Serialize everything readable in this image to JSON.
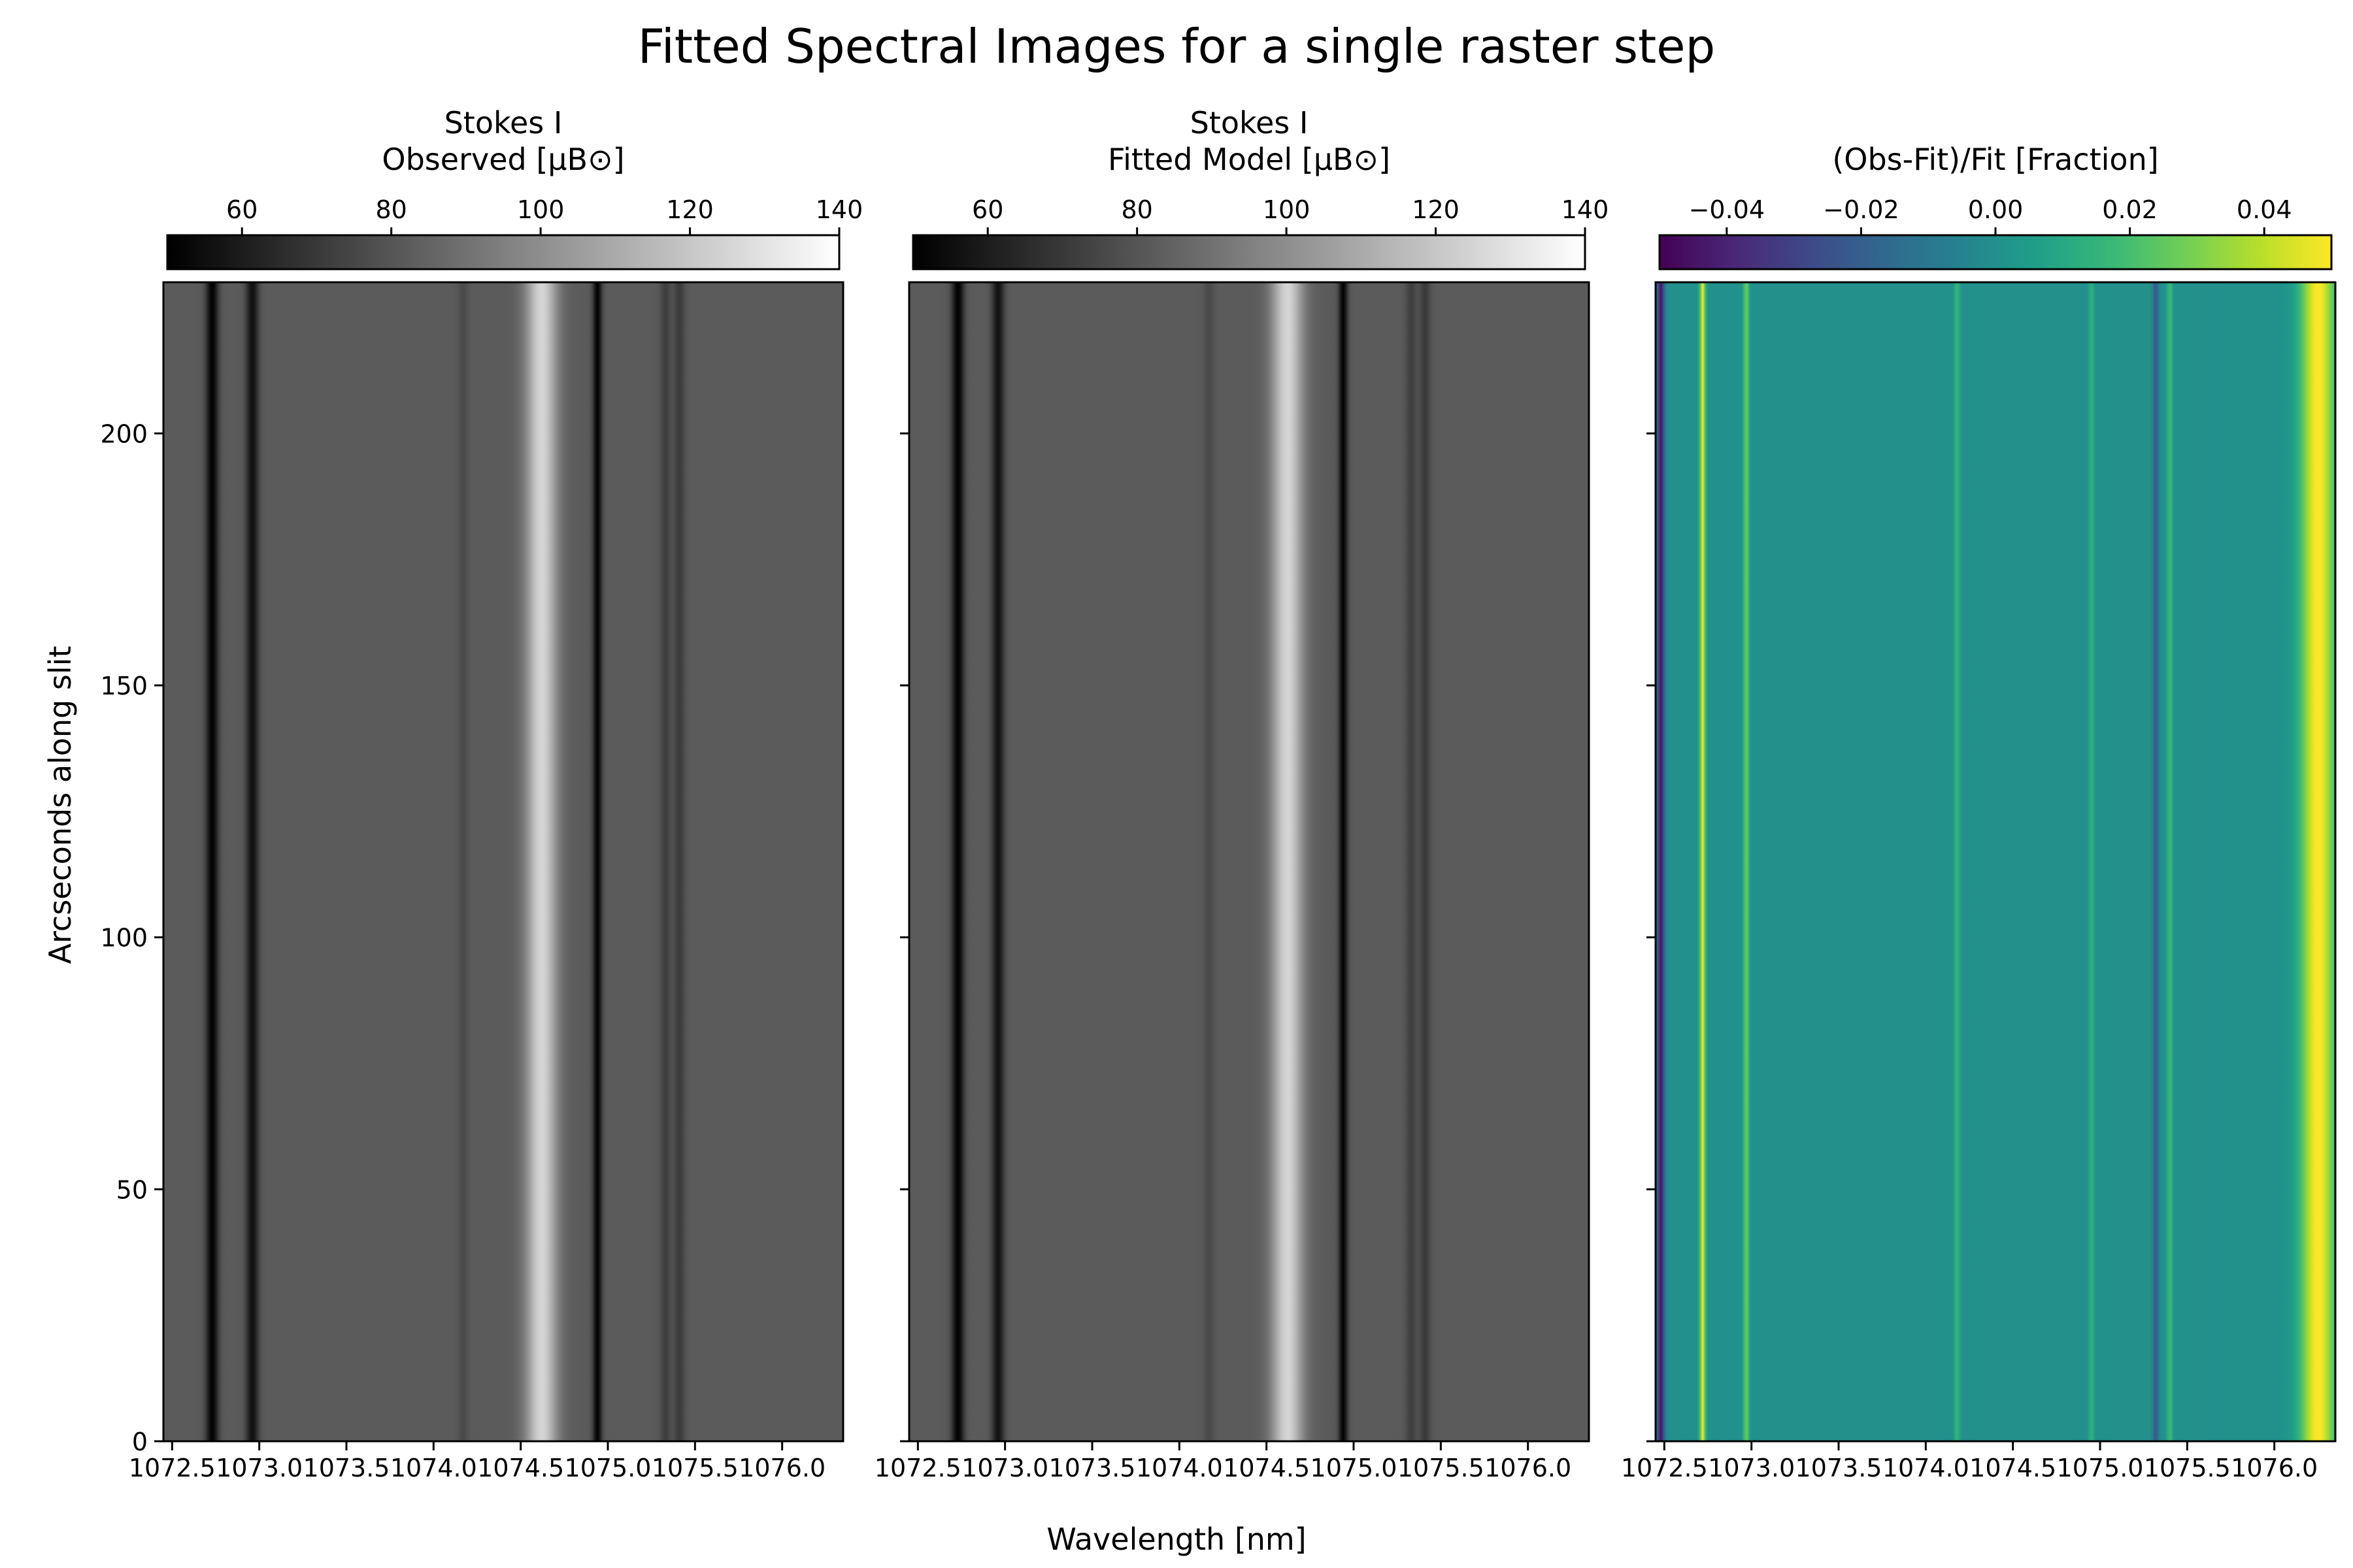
{
  "title": "Fitted Spectral Images for a single raster step",
  "xlabel": "Wavelength [nm]",
  "ylabel": "Arcseconds along slit",
  "colors": {
    "frame": "#000000",
    "viridis_low": "#440154",
    "viridis_mid": "#21918c",
    "viridis_high": "#fde725"
  },
  "chart_data": [
    {
      "type": "heatmap",
      "colorbar_label_lines": [
        "Stokes I",
        "Observed [μB⊙]"
      ],
      "colormap": "gray",
      "clim": [
        50,
        140
      ],
      "colorbar_ticks": [
        "60",
        "80",
        "100",
        "120",
        "140"
      ],
      "colorbar_tick_values": [
        60,
        80,
        100,
        120,
        140
      ],
      "xlim": [
        1072.45,
        1076.35
      ],
      "ylim": [
        0,
        230
      ],
      "xticks": [
        "1072.5",
        "1073.0",
        "1073.5",
        "1074.0",
        "1074.5",
        "1075.0",
        "1075.5",
        "1076.0"
      ],
      "xtick_values": [
        1072.5,
        1073.0,
        1073.5,
        1074.0,
        1074.5,
        1075.0,
        1075.5,
        1076.0
      ],
      "yticks": [
        "0",
        "50",
        "100",
        "150",
        "200"
      ],
      "ytick_values": [
        0,
        50,
        100,
        150,
        200
      ],
      "background_intensity": 82,
      "features": [
        {
          "wavelength": 1072.73,
          "intensity": 50,
          "width": 0.035
        },
        {
          "wavelength": 1072.96,
          "intensity": 55,
          "width": 0.035
        },
        {
          "wavelength": 1074.17,
          "intensity": 76,
          "width": 0.03
        },
        {
          "wavelength": 1074.62,
          "intensity": 125,
          "width": 0.09
        },
        {
          "wavelength": 1074.94,
          "intensity": 50,
          "width": 0.025
        },
        {
          "wavelength": 1075.33,
          "intensity": 72,
          "width": 0.03
        },
        {
          "wavelength": 1075.41,
          "intensity": 70,
          "width": 0.03
        }
      ]
    },
    {
      "type": "heatmap",
      "colorbar_label_lines": [
        "Stokes I",
        "Fitted Model [μB⊙]"
      ],
      "colormap": "gray",
      "clim": [
        50,
        140
      ],
      "colorbar_ticks": [
        "60",
        "80",
        "100",
        "120",
        "140"
      ],
      "colorbar_tick_values": [
        60,
        80,
        100,
        120,
        140
      ],
      "xlim": [
        1072.45,
        1076.35
      ],
      "ylim": [
        0,
        230
      ],
      "xticks": [
        "1072.5",
        "1073.0",
        "1073.5",
        "1074.0",
        "1074.5",
        "1075.0",
        "1075.5",
        "1076.0"
      ],
      "xtick_values": [
        1072.5,
        1073.0,
        1073.5,
        1074.0,
        1074.5,
        1075.0,
        1075.5,
        1076.0
      ],
      "yticks": [
        "",
        "",
        "",
        "",
        ""
      ],
      "ytick_values": [
        0,
        50,
        100,
        150,
        200
      ],
      "background_intensity": 82,
      "features": [
        {
          "wavelength": 1072.73,
          "intensity": 50,
          "width": 0.035
        },
        {
          "wavelength": 1072.96,
          "intensity": 56,
          "width": 0.035
        },
        {
          "wavelength": 1074.17,
          "intensity": 76,
          "width": 0.03
        },
        {
          "wavelength": 1074.62,
          "intensity": 125,
          "width": 0.09
        },
        {
          "wavelength": 1074.94,
          "intensity": 50,
          "width": 0.025
        },
        {
          "wavelength": 1075.33,
          "intensity": 72,
          "width": 0.03
        },
        {
          "wavelength": 1075.41,
          "intensity": 70,
          "width": 0.03
        }
      ]
    },
    {
      "type": "heatmap",
      "colorbar_label_lines": [
        "(Obs-Fit)/Fit [Fraction]"
      ],
      "colormap": "viridis",
      "clim": [
        -0.05,
        0.05
      ],
      "colorbar_ticks": [
        "−0.04",
        "−0.02",
        "0.00",
        "0.02",
        "0.04"
      ],
      "colorbar_tick_values": [
        -0.04,
        -0.02,
        0.0,
        0.02,
        0.04
      ],
      "xlim": [
        1072.45,
        1076.35
      ],
      "ylim": [
        0,
        230
      ],
      "xticks": [
        "1072.5",
        "1073.0",
        "1073.5",
        "1074.0",
        "1074.5",
        "1075.0",
        "1075.5",
        "1076.0"
      ],
      "xtick_values": [
        1072.5,
        1073.0,
        1073.5,
        1074.0,
        1074.5,
        1075.0,
        1075.5,
        1076.0
      ],
      "yticks": [
        "",
        "",
        "",
        "",
        ""
      ],
      "ytick_values": [
        0,
        50,
        100,
        150,
        200
      ],
      "background_value": 0.0,
      "features": [
        {
          "wavelength": 1072.48,
          "value": -0.045,
          "width": 0.02
        },
        {
          "wavelength": 1072.72,
          "value": 0.05,
          "width": 0.015
        },
        {
          "wavelength": 1072.97,
          "value": 0.03,
          "width": 0.015
        },
        {
          "wavelength": 1074.18,
          "value": 0.018,
          "width": 0.015
        },
        {
          "wavelength": 1074.95,
          "value": 0.015,
          "width": 0.015
        },
        {
          "wavelength": 1075.32,
          "value": -0.025,
          "width": 0.015
        },
        {
          "wavelength": 1075.4,
          "value": 0.02,
          "width": 0.015
        },
        {
          "wavelength": 1076.25,
          "value": 0.05,
          "width": 0.1
        }
      ]
    }
  ]
}
